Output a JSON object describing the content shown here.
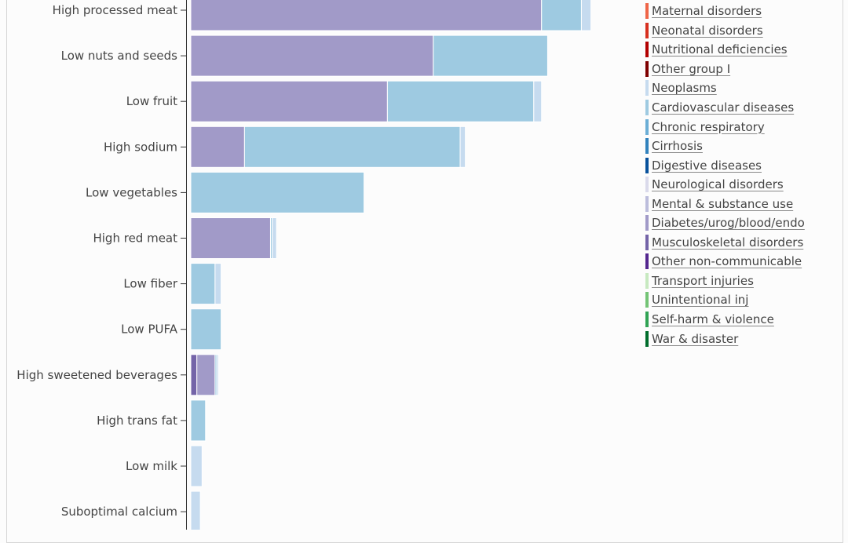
{
  "chart_data": {
    "type": "bar",
    "orientation": "horizontal",
    "stacked": true,
    "grid": false,
    "legend_position": "right",
    "categories": [
      "High processed meat",
      "Low nuts and seeds",
      "Low fruit",
      "High sodium",
      "Low vegetables",
      "High red meat",
      "Low fiber",
      "Low PUFA",
      "High sweetened beverages",
      "High trans fat",
      "Low milk",
      "Suboptimal calcium"
    ],
    "series": [
      {
        "name": "Musculoskeletal disorders",
        "color": "#7464a8",
        "values": [
          0,
          0,
          0,
          0,
          0,
          0,
          0,
          0,
          0.7,
          0,
          0,
          0
        ]
      },
      {
        "name": "Diabetes/urog/blood/endo",
        "color": "#a19ac8",
        "values": [
          40.5,
          28,
          22.7,
          6.2,
          0,
          9.2,
          0,
          0,
          2.1,
          0,
          0,
          0
        ]
      },
      {
        "name": "Cardiovascular diseases",
        "color": "#9ecae1",
        "values": [
          4.6,
          13.2,
          16.9,
          24.9,
          20,
          0.2,
          2.8,
          3.5,
          0.2,
          1.7,
          0,
          0
        ]
      },
      {
        "name": "Neoplasms",
        "color": "#c6dbef",
        "values": [
          1.1,
          0,
          0.9,
          0.6,
          0,
          0.5,
          0.7,
          0,
          0.2,
          0,
          1.3,
          1.1
        ]
      }
    ],
    "xlim": [
      0,
      52
    ],
    "legend": [
      {
        "label": "Maternal disorders",
        "color": "#ef6548"
      },
      {
        "label": "Neonatal disorders",
        "color": "#d7301f"
      },
      {
        "label": "Nutritional deficiencies",
        "color": "#b30000"
      },
      {
        "label": "Other group I",
        "color": "#7f0000"
      },
      {
        "label": "Neoplasms",
        "color": "#c6dbef"
      },
      {
        "label": "Cardiovascular diseases",
        "color": "#9ecae1"
      },
      {
        "label": "Chronic respiratory",
        "color": "#6baed6"
      },
      {
        "label": "Cirrhosis",
        "color": "#3182bd"
      },
      {
        "label": "Digestive diseases",
        "color": "#08519c"
      },
      {
        "label": "Neurological disorders",
        "color": "#dadaeb"
      },
      {
        "label": "Mental & substance use",
        "color": "#bcbddc"
      },
      {
        "label": "Diabetes/urog/blood/endo",
        "color": "#a19ac8"
      },
      {
        "label": "Musculoskeletal disorders",
        "color": "#7464a8"
      },
      {
        "label": "Other non-communicable",
        "color": "#54278f"
      },
      {
        "label": "Transport injuries",
        "color": "#c7e9c0"
      },
      {
        "label": "Unintentional inj",
        "color": "#74c476"
      },
      {
        "label": "Self-harm & violence",
        "color": "#31a354"
      },
      {
        "label": "War & disaster",
        "color": "#006d2c"
      }
    ]
  }
}
